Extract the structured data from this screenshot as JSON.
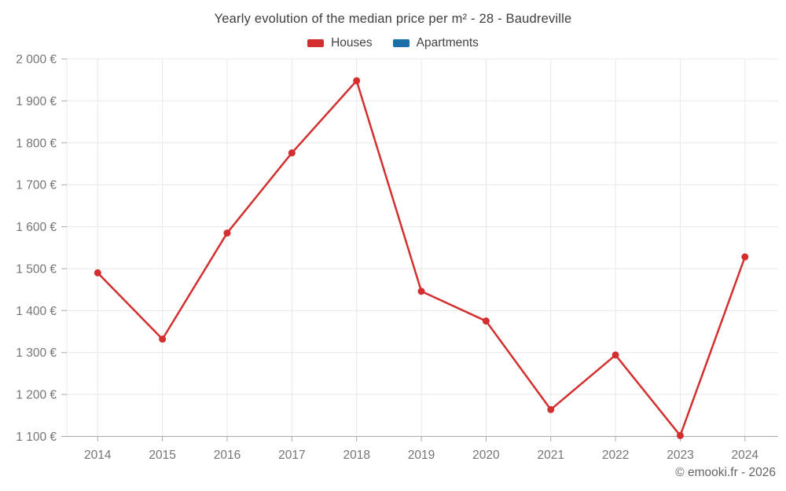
{
  "header": {
    "title": "Yearly evolution of the median price per m² - 28 - Baudreville"
  },
  "legend": {
    "items": [
      {
        "label": "Houses",
        "color": "#d32f2f"
      },
      {
        "label": "Apartments",
        "color": "#1a6fa8"
      }
    ]
  },
  "footer": {
    "credit": "© emooki.fr - 2026"
  },
  "colors": {
    "houses_line": "#d32f2f",
    "apartments_line": "#1a6fa8",
    "gridline": "#e8e8e8",
    "axis_line": "#aaaaaa",
    "tick_label": "#757575"
  },
  "chart_data": {
    "type": "line",
    "title": "Yearly evolution of the median price per m² - 28 - Baudreville",
    "categories": [
      "2014",
      "2015",
      "2016",
      "2017",
      "2018",
      "2019",
      "2020",
      "2021",
      "2022",
      "2023",
      "2024"
    ],
    "series": [
      {
        "name": "Houses",
        "color": "#d32f2f",
        "values": [
          1490,
          1332,
          1585,
          1776,
          1948,
          1446,
          1375,
          1164,
          1294,
          1102,
          1528
        ]
      },
      {
        "name": "Apartments",
        "color": "#1a6fa8",
        "values": []
      }
    ],
    "xlabel": "",
    "ylabel": "",
    "ylim": [
      1100,
      2000
    ],
    "y_ticks": [
      2000,
      1900,
      1800,
      1700,
      1600,
      1500,
      1400,
      1300,
      1200,
      1100
    ],
    "y_tick_labels": [
      "2 000 €",
      "1 900 €",
      "1 800 €",
      "1 700 €",
      "1 600 €",
      "1 500 €",
      "1 400 €",
      "1 300 €",
      "1 200 €",
      "1 100 €"
    ],
    "grid": true,
    "legend_position": "top",
    "currency_suffix": " €"
  }
}
